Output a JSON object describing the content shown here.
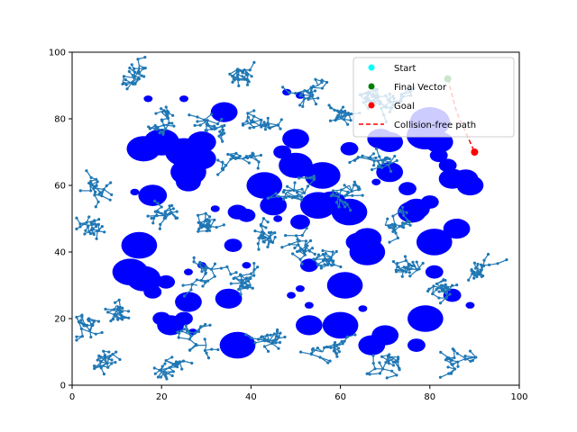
{
  "chart_data": {
    "type": "scatter",
    "title": "",
    "xlabel": "",
    "ylabel": "",
    "xlim": [
      0,
      100
    ],
    "ylim": [
      0,
      100
    ],
    "x_ticks": [
      "0",
      "20",
      "40",
      "60",
      "80",
      "100"
    ],
    "y_ticks": [
      "0",
      "20",
      "40",
      "60",
      "80",
      "100"
    ],
    "grid": false,
    "legend_position": "top-right",
    "colors": {
      "obstacle": "#0000ff",
      "tree": "#1f77b4",
      "start": "#00ffff",
      "final_vector": "#008000",
      "goal": "#ff0000",
      "path": "#ff0000"
    },
    "obstacles": [
      {
        "x": 17,
        "y": 86,
        "r": 1.0
      },
      {
        "x": 25,
        "y": 86,
        "r": 1.0
      },
      {
        "x": 34,
        "y": 82,
        "r": 3.0
      },
      {
        "x": 16,
        "y": 71,
        "r": 3.8
      },
      {
        "x": 20,
        "y": 73,
        "r": 4.0
      },
      {
        "x": 25,
        "y": 70,
        "r": 4.2
      },
      {
        "x": 29,
        "y": 73,
        "r": 3.2
      },
      {
        "x": 29,
        "y": 68,
        "r": 3.2
      },
      {
        "x": 26,
        "y": 64,
        "r": 4.0
      },
      {
        "x": 26,
        "y": 61,
        "r": 2.8
      },
      {
        "x": 18,
        "y": 57,
        "r": 3.2
      },
      {
        "x": 14,
        "y": 58,
        "r": 1.0
      },
      {
        "x": 32,
        "y": 53,
        "r": 1.0
      },
      {
        "x": 37,
        "y": 52,
        "r": 2.2
      },
      {
        "x": 39,
        "y": 51,
        "r": 2.0
      },
      {
        "x": 43,
        "y": 60,
        "r": 4.0
      },
      {
        "x": 45,
        "y": 54,
        "r": 3.0
      },
      {
        "x": 46,
        "y": 50,
        "r": 1.0
      },
      {
        "x": 51,
        "y": 49,
        "r": 2.2
      },
      {
        "x": 47,
        "y": 70,
        "r": 2.0
      },
      {
        "x": 50,
        "y": 74,
        "r": 3.0
      },
      {
        "x": 50,
        "y": 66,
        "r": 3.8
      },
      {
        "x": 56,
        "y": 63,
        "r": 4.0
      },
      {
        "x": 55,
        "y": 54,
        "r": 4.0
      },
      {
        "x": 58,
        "y": 55,
        "r": 3.2
      },
      {
        "x": 62,
        "y": 52,
        "r": 4.0
      },
      {
        "x": 62,
        "y": 71,
        "r": 2.0
      },
      {
        "x": 48,
        "y": 88,
        "r": 1.0
      },
      {
        "x": 51,
        "y": 87,
        "r": 1.0
      },
      {
        "x": 69,
        "y": 74,
        "r": 3.0
      },
      {
        "x": 71,
        "y": 73,
        "r": 3.0
      },
      {
        "x": 71,
        "y": 64,
        "r": 3.0
      },
      {
        "x": 68,
        "y": 61,
        "r": 1.0
      },
      {
        "x": 75,
        "y": 59,
        "r": 2.0
      },
      {
        "x": 77,
        "y": 53,
        "r": 3.0
      },
      {
        "x": 76,
        "y": 52,
        "r": 3.2
      },
      {
        "x": 79,
        "y": 75,
        "r": 4.2
      },
      {
        "x": 80,
        "y": 79,
        "r": 4.5
      },
      {
        "x": 82,
        "y": 73,
        "r": 3.2
      },
      {
        "x": 82,
        "y": 69,
        "r": 2.0
      },
      {
        "x": 84,
        "y": 66,
        "r": 2.0
      },
      {
        "x": 85,
        "y": 62,
        "r": 3.0
      },
      {
        "x": 88,
        "y": 62,
        "r": 2.8
      },
      {
        "x": 89,
        "y": 60,
        "r": 3.0
      },
      {
        "x": 80,
        "y": 55,
        "r": 2.0
      },
      {
        "x": 86,
        "y": 47,
        "r": 3.0
      },
      {
        "x": 81,
        "y": 43,
        "r": 4.0
      },
      {
        "x": 66,
        "y": 44,
        "r": 3.2
      },
      {
        "x": 64,
        "y": 43,
        "r": 2.8
      },
      {
        "x": 66,
        "y": 40,
        "r": 4.0
      },
      {
        "x": 15,
        "y": 42,
        "r": 4.0
      },
      {
        "x": 36,
        "y": 42,
        "r": 2.0
      },
      {
        "x": 53,
        "y": 36,
        "r": 2.0
      },
      {
        "x": 39,
        "y": 36,
        "r": 1.0
      },
      {
        "x": 29,
        "y": 36,
        "r": 1.0
      },
      {
        "x": 26,
        "y": 34,
        "r": 1.0
      },
      {
        "x": 13,
        "y": 34,
        "r": 4.0
      },
      {
        "x": 16,
        "y": 32,
        "r": 3.8
      },
      {
        "x": 18,
        "y": 31,
        "r": 2.0
      },
      {
        "x": 21,
        "y": 31,
        "r": 2.0
      },
      {
        "x": 18,
        "y": 28,
        "r": 2.0
      },
      {
        "x": 26,
        "y": 25,
        "r": 3.0
      },
      {
        "x": 35,
        "y": 26,
        "r": 3.0
      },
      {
        "x": 49,
        "y": 27,
        "r": 1.0
      },
      {
        "x": 51,
        "y": 29,
        "r": 1.0
      },
      {
        "x": 53,
        "y": 24,
        "r": 1.0
      },
      {
        "x": 61,
        "y": 30,
        "r": 4.0
      },
      {
        "x": 65,
        "y": 23,
        "r": 1.0
      },
      {
        "x": 81,
        "y": 34,
        "r": 2.0
      },
      {
        "x": 85,
        "y": 27,
        "r": 2.0
      },
      {
        "x": 89,
        "y": 24,
        "r": 1.0
      },
      {
        "x": 20,
        "y": 20,
        "r": 2.0
      },
      {
        "x": 22,
        "y": 18,
        "r": 3.0
      },
      {
        "x": 25,
        "y": 20,
        "r": 2.0
      },
      {
        "x": 27,
        "y": 16,
        "r": 1.0
      },
      {
        "x": 37,
        "y": 12,
        "r": 4.0
      },
      {
        "x": 53,
        "y": 18,
        "r": 3.0
      },
      {
        "x": 60,
        "y": 18,
        "r": 4.0
      },
      {
        "x": 67,
        "y": 12,
        "r": 3.0
      },
      {
        "x": 70,
        "y": 15,
        "r": 3.0
      },
      {
        "x": 77,
        "y": 12,
        "r": 2.0
      },
      {
        "x": 79,
        "y": 20,
        "r": 4.0
      }
    ],
    "tree_roots": [
      {
        "x": 15,
        "y": 96
      },
      {
        "x": 37,
        "y": 92
      },
      {
        "x": 55,
        "y": 90
      },
      {
        "x": 66,
        "y": 86
      },
      {
        "x": 70,
        "y": 84
      },
      {
        "x": 4,
        "y": 60
      },
      {
        "x": 4,
        "y": 48
      },
      {
        "x": 20,
        "y": 82
      },
      {
        "x": 30,
        "y": 78
      },
      {
        "x": 42,
        "y": 78
      },
      {
        "x": 60,
        "y": 80
      },
      {
        "x": 38,
        "y": 68
      },
      {
        "x": 22,
        "y": 52
      },
      {
        "x": 30,
        "y": 48
      },
      {
        "x": 48,
        "y": 58
      },
      {
        "x": 52,
        "y": 42
      },
      {
        "x": 44,
        "y": 44
      },
      {
        "x": 70,
        "y": 48
      },
      {
        "x": 92,
        "y": 36
      },
      {
        "x": 74,
        "y": 34
      },
      {
        "x": 58,
        "y": 38
      },
      {
        "x": 40,
        "y": 30
      },
      {
        "x": 28,
        "y": 30
      },
      {
        "x": 10,
        "y": 24
      },
      {
        "x": 4,
        "y": 16
      },
      {
        "x": 6,
        "y": 6
      },
      {
        "x": 20,
        "y": 4
      },
      {
        "x": 30,
        "y": 12
      },
      {
        "x": 46,
        "y": 14
      },
      {
        "x": 56,
        "y": 10
      },
      {
        "x": 72,
        "y": 8
      },
      {
        "x": 88,
        "y": 8
      },
      {
        "x": 84,
        "y": 28
      },
      {
        "x": 62,
        "y": 60
      },
      {
        "x": 66,
        "y": 68
      }
    ],
    "start": {
      "x": 84,
      "y": 92
    },
    "final_vector": {
      "x": 84,
      "y": 92
    },
    "goal": {
      "x": 90,
      "y": 70
    },
    "path": [
      [
        84,
        92
      ],
      [
        86,
        82
      ],
      [
        88,
        76
      ],
      [
        90,
        70
      ]
    ],
    "legend": [
      {
        "label": "Start",
        "marker": "dot",
        "color": "#00ffff"
      },
      {
        "label": "Final Vector",
        "marker": "dot",
        "color": "#008000"
      },
      {
        "label": "Goal",
        "marker": "dot",
        "color": "#ff0000"
      },
      {
        "label": "Collision-free path",
        "marker": "dash",
        "color": "#ff0000"
      }
    ]
  }
}
